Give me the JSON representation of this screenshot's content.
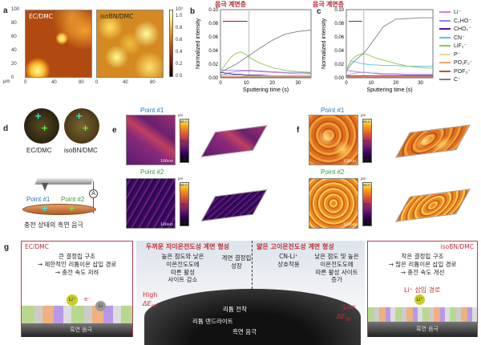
{
  "panels": {
    "a": "a",
    "b": "b",
    "c": "c",
    "d": "d",
    "e": "e",
    "f": "f",
    "g": "g"
  },
  "panel_a": {
    "maps": [
      "EC/DMC",
      "isoBN/DMC"
    ],
    "unit": "μm",
    "xticks": [
      "0",
      "40",
      "80"
    ],
    "yticks": [
      "100",
      "80",
      "60",
      "40",
      "20",
      "0"
    ],
    "colorbar_exp": "10³",
    "colorbar_ticks": [
      "1.0",
      "0.8",
      "0.6",
      "0.4",
      "0.2",
      "0.0"
    ]
  },
  "chart_data": [
    {
      "type": "line",
      "panel": "b",
      "title": "음극 계면층",
      "xlabel": "Sputtering time (s)",
      "ylabel": "Normalized intensity",
      "xlim": [
        0,
        35
      ],
      "ylim": [
        0,
        0.1
      ],
      "xticks": [
        "0",
        "10",
        "20",
        "30"
      ],
      "yticks": [
        "0.00",
        "0.02",
        "0.04",
        "0.06",
        "0.08",
        "0.10"
      ],
      "interface_marker": 11,
      "x": [
        0,
        2,
        4,
        6,
        8,
        10,
        12,
        15,
        20,
        25,
        30,
        35
      ],
      "series": [
        {
          "name": "Li-",
          "values": [
            0.003,
            0.006,
            0.008,
            0.009,
            0.01,
            0.01,
            0.01,
            0.009,
            0.008,
            0.007,
            0.006,
            0.006
          ]
        },
        {
          "name": "C2HO-",
          "values": [
            0.012,
            0.011,
            0.011,
            0.011,
            0.011,
            0.011,
            0.011,
            0.01,
            0.009,
            0.008,
            0.008,
            0.007
          ]
        },
        {
          "name": "CHO2-",
          "values": [
            0.008,
            0.007,
            0.006,
            0.005,
            0.005,
            0.004,
            0.004,
            0.004,
            0.003,
            0.003,
            0.003,
            0.003
          ]
        },
        {
          "name": "CN-",
          "values": [
            0.005,
            0.004,
            0.004,
            0.004,
            0.004,
            0.003,
            0.003,
            0.003,
            0.003,
            0.003,
            0.003,
            0.003
          ]
        },
        {
          "name": "LiF2-",
          "values": [
            0.01,
            0.02,
            0.03,
            0.036,
            0.038,
            0.034,
            0.028,
            0.022,
            0.015,
            0.011,
            0.009,
            0.008
          ]
        },
        {
          "name": "P-",
          "values": [
            0.001,
            0.001,
            0.001,
            0.001,
            0.001,
            0.001,
            0.001,
            0.001,
            0.001,
            0.001,
            0.001,
            0.001
          ]
        },
        {
          "name": "PO2F2-",
          "values": [
            0.002,
            0.002,
            0.002,
            0.002,
            0.002,
            0.002,
            0.002,
            0.002,
            0.002,
            0.002,
            0.002,
            0.002
          ]
        },
        {
          "name": "POF3-",
          "values": [
            0.001,
            0.001,
            0.001,
            0.001,
            0.001,
            0.001,
            0.001,
            0.001,
            0.001,
            0.001,
            0.001,
            0.001
          ]
        },
        {
          "name": "C-",
          "values": [
            0.008,
            0.012,
            0.016,
            0.02,
            0.025,
            0.03,
            0.035,
            0.043,
            0.055,
            0.064,
            0.068,
            0.07
          ]
        }
      ]
    },
    {
      "type": "line",
      "panel": "c",
      "title": "음극 계면층",
      "xlabel": "Sputtering time (s)",
      "ylabel": "Normalized intensity",
      "xlim": [
        0,
        35
      ],
      "ylim": [
        0,
        0.1
      ],
      "xticks": [
        "0",
        "10",
        "20",
        "30"
      ],
      "yticks": [
        "0.00",
        "0.02",
        "0.04",
        "0.06",
        "0.08",
        "0.10"
      ],
      "interface_marker": 7,
      "x": [
        0,
        2,
        4,
        6,
        8,
        10,
        12,
        15,
        20,
        25,
        30,
        35
      ],
      "series": [
        {
          "name": "Li-",
          "values": [
            0.003,
            0.006,
            0.007,
            0.008,
            0.008,
            0.007,
            0.006,
            0.005,
            0.005,
            0.004,
            0.004,
            0.004
          ]
        },
        {
          "name": "C2HO-",
          "values": [
            0.011,
            0.01,
            0.009,
            0.008,
            0.008,
            0.007,
            0.007,
            0.006,
            0.006,
            0.005,
            0.005,
            0.005
          ]
        },
        {
          "name": "CHO2-",
          "values": [
            0.003,
            0.003,
            0.003,
            0.003,
            0.003,
            0.003,
            0.003,
            0.003,
            0.003,
            0.003,
            0.003,
            0.003
          ]
        },
        {
          "name": "CN-",
          "values": [
            0.012,
            0.025,
            0.023,
            0.021,
            0.02,
            0.019,
            0.019,
            0.018,
            0.018,
            0.017,
            0.017,
            0.017
          ]
        },
        {
          "name": "LiF2-",
          "values": [
            0.012,
            0.026,
            0.032,
            0.035,
            0.035,
            0.032,
            0.029,
            0.026,
            0.021,
            0.017,
            0.015,
            0.014
          ]
        },
        {
          "name": "P-",
          "values": [
            0.001,
            0.001,
            0.001,
            0.001,
            0.001,
            0.001,
            0.001,
            0.001,
            0.001,
            0.001,
            0.001,
            0.001
          ]
        },
        {
          "name": "PO2F2-",
          "values": [
            0.002,
            0.002,
            0.002,
            0.002,
            0.002,
            0.002,
            0.002,
            0.002,
            0.002,
            0.002,
            0.002,
            0.002
          ]
        },
        {
          "name": "POF3-",
          "values": [
            0.001,
            0.001,
            0.001,
            0.001,
            0.001,
            0.001,
            0.001,
            0.001,
            0.001,
            0.001,
            0.001,
            0.001
          ]
        },
        {
          "name": "C-",
          "values": [
            0.01,
            0.02,
            0.027,
            0.033,
            0.04,
            0.05,
            0.06,
            0.075,
            0.086,
            0.087,
            0.088,
            0.088
          ]
        }
      ]
    }
  ],
  "legend": [
    {
      "label": "Li⁻",
      "color": "#e07ac0"
    },
    {
      "label": "C₂HO⁻",
      "color": "#8a8ae6"
    },
    {
      "label": "CHO₂⁻",
      "color": "#5a149a"
    },
    {
      "label": "CN⁻",
      "color": "#5bc0de"
    },
    {
      "label": "LiF₂⁻",
      "color": "#8cc84b"
    },
    {
      "label": "P⁻",
      "color": "#ecd8a0"
    },
    {
      "label": "PO₂F₂⁻",
      "color": "#f0a070"
    },
    {
      "label": "POF₃⁻",
      "color": "#b05a40"
    },
    {
      "label": "C⁻",
      "color": "#808080"
    }
  ],
  "panel_d": {
    "labels": [
      "EC/DMC",
      "isoBN/DMC"
    ],
    "point1": "Point #1",
    "point2": "Point #2",
    "ammeter": "A",
    "caption": "충전 상태의 흑연 음극"
  },
  "afm": {
    "point1": "Point #1",
    "point2": "Point #2",
    "scale": "100nm",
    "unit": "pm",
    "cb_ticks": [
      "60.0",
      "30.0",
      "0.00"
    ]
  },
  "panel_g": {
    "left_title": "EC/DMC",
    "left_text": [
      "큰 결정립 구조",
      "→ 제한적인 리튬이온 삽입 경로",
      "→ 충전 속도 저하"
    ],
    "li": "Li⁺",
    "e": "e⁻",
    "li0": "Li",
    "graphite": "흑연 음극",
    "mid_left_title": "두꺼운 저이온전도성 계면 형성",
    "mid_left_text": [
      "높은 점도와 낮은",
      "이온전도도에",
      "따른 활성",
      "사이트 감소"
    ],
    "grain": [
      "계면 결정립",
      "성장"
    ],
    "high": "High",
    "de_high": "ΔE",
    "sei": "SEI",
    "plating": "리튬 전착",
    "dendrite": "리튬 덴드라이트",
    "mid_graphite": "흑연 음극",
    "mid_right_title": "얇은 고이온전도성 계면 형성",
    "cnli": [
      "CN-Li⁺",
      "상호작용"
    ],
    "mid_right_text": [
      "낮은 점도 및 높은",
      "이온전도도에",
      "따른 활성 사이트",
      "증가"
    ],
    "low": "Low",
    "right_title": "isoBN/DMC",
    "right_text": [
      "작은 결정립 구조",
      "→ 많은 리튬이온 삽입 경로",
      "→ 충전 속도 개선"
    ],
    "path": "Li⁺ 삽입 경로"
  }
}
